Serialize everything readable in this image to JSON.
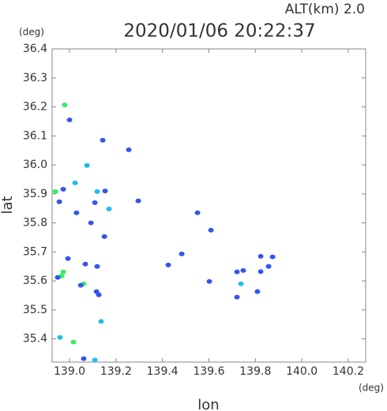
{
  "chart_data": {
    "type": "scatter",
    "title": "2020/01/06 20:22:37",
    "subtitle": "ALT(km) 2.0",
    "y_unit": "(deg)",
    "x_unit": "(deg)",
    "xlabel": "lon",
    "ylabel": "lat",
    "xlim": [
      138.925,
      140.275
    ],
    "ylim": [
      35.32,
      36.4
    ],
    "xticks": [
      {
        "value": 139.0,
        "label": "139.0"
      },
      139.2,
      139.4,
      139.6,
      139.8,
      {
        "value": 140.0,
        "label": "140.0"
      },
      140.2
    ],
    "yticks": [
      35.4,
      35.5,
      35.6,
      35.7,
      35.8,
      35.9,
      {
        "value": 36.0,
        "label": "36.0"
      },
      36.1,
      36.2,
      36.3,
      36.4
    ],
    "x": [
      138.979,
      139.0,
      139.143,
      139.075,
      139.255,
      139.024,
      138.973,
      138.939,
      138.956,
      139.119,
      139.153,
      139.109,
      139.17,
      139.092,
      139.03,
      139.15,
      138.993,
      139.068,
      139.119,
      138.966,
      138.973,
      138.949,
      139.061,
      139.048,
      139.116,
      139.126,
      139.136,
      138.959,
      139.017,
      139.061,
      139.109,
      139.425,
      139.483,
      139.602,
      139.721,
      139.748,
      139.823,
      139.857,
      139.874,
      139.738,
      139.721,
      139.809,
      139.823,
      139.609,
      139.551,
      139.296
    ],
    "y": [
      36.207,
      36.155,
      36.085,
      35.998,
      36.052,
      35.938,
      35.916,
      35.908,
      35.873,
      35.908,
      35.91,
      35.87,
      35.848,
      35.8,
      35.835,
      35.753,
      35.677,
      35.658,
      35.65,
      35.617,
      35.631,
      35.612,
      35.59,
      35.585,
      35.563,
      35.552,
      35.46,
      35.405,
      35.389,
      35.332,
      35.327,
      35.655,
      35.693,
      35.598,
      35.631,
      35.636,
      35.685,
      35.65,
      35.683,
      35.59,
      35.544,
      35.563,
      35.632,
      35.775,
      35.835,
      35.876
    ],
    "colors": [
      "#33ee66",
      "#3355ee",
      "#3355ee",
      "#22bbee",
      "#3355ee",
      "#22bbee",
      "#3355ee",
      "#33ee66",
      "#3355ee",
      "#22bbee",
      "#3355ee",
      "#3355ee",
      "#22bbee",
      "#3355ee",
      "#3355ee",
      "#3355ee",
      "#3355ee",
      "#3355ee",
      "#3355ee",
      "#33ee66",
      "#33ee66",
      "#3355ee",
      "#33ee66",
      "#3355ee",
      "#3355ee",
      "#3355ee",
      "#22bbee",
      "#22bbee",
      "#33ee66",
      "#3355ee",
      "#22bbee",
      "#3355ee",
      "#3355ee",
      "#3355ee",
      "#3355ee",
      "#3355ee",
      "#3355ee",
      "#3355ee",
      "#3355ee",
      "#22bbee",
      "#3355ee",
      "#3355ee",
      "#3355ee",
      "#3355ee",
      "#3355ee",
      "#3355ee"
    ]
  }
}
